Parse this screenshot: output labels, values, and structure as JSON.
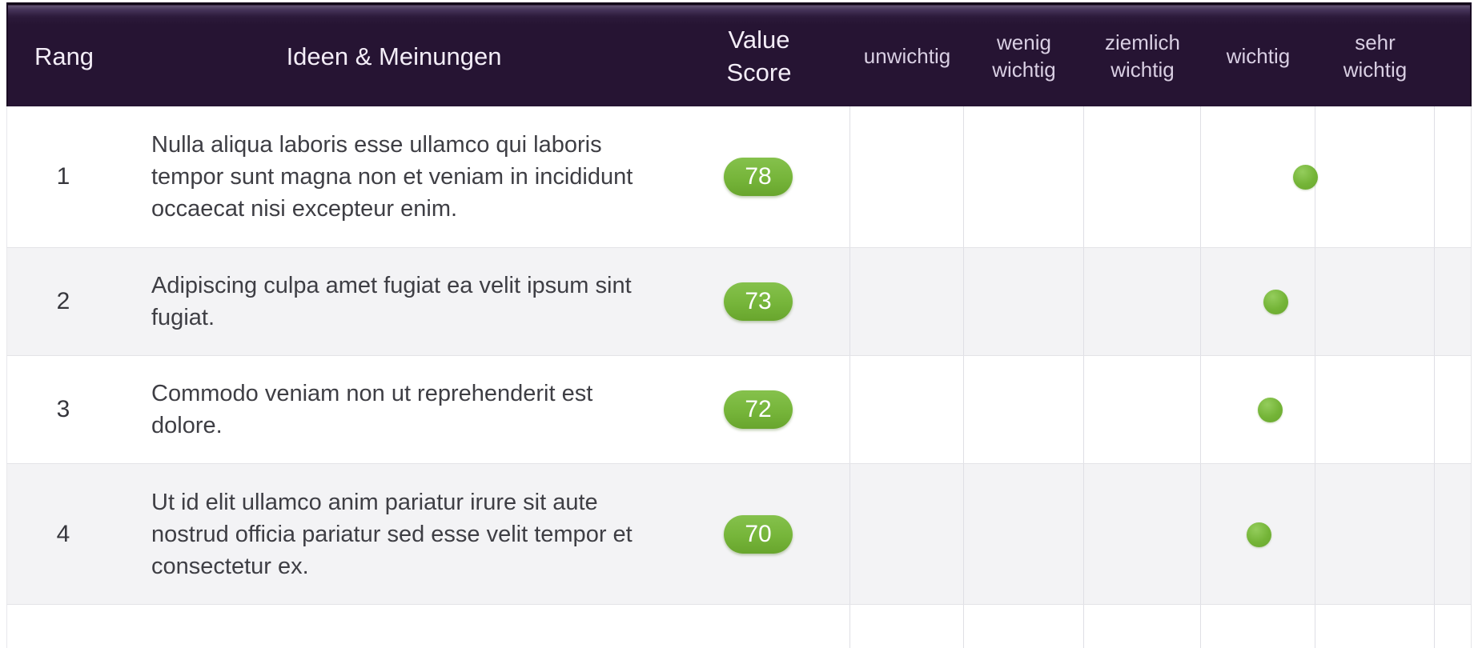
{
  "header": {
    "rank_label": "Rang",
    "idea_label": "Ideen & Meinungen",
    "score_label": "Value Score",
    "rating_labels": [
      "unwichtig",
      "wenig wichtig",
      "ziemlich wichtig",
      "wichtig",
      "sehr wichtig"
    ]
  },
  "rating_scale": {
    "min": 0,
    "max": 100
  },
  "rows": [
    {
      "rank": "1",
      "text": "Nulla aliqua laboris esse ullamco qui laboris tempor sunt magna non et veniam in incididunt occaecat nisi excepteur enim.",
      "score": 78,
      "rating": "wichtig"
    },
    {
      "rank": "2",
      "text": "Adipiscing culpa amet fugiat ea velit ipsum sint fugiat.",
      "score": 73,
      "rating": "wichtig"
    },
    {
      "rank": "3",
      "text": "Commodo veniam non ut reprehenderit est dolore.",
      "score": 72,
      "rating": "wichtig"
    },
    {
      "rank": "4",
      "text": "Ut id elit ullamco anim pariatur irure sit aute nostrud officia pariatur sed esse velit tempor et consectetur ex.",
      "score": 70,
      "rating": "wichtig"
    }
  ],
  "colors": {
    "header_bg": "#261433",
    "header_text": "#f3edf7",
    "header_rating_text": "#d9cfe3",
    "row_alt_bg": "#f3f3f5",
    "body_text": "#3e3e44",
    "gridline": "#dfdfe5",
    "score_green": "#76b53a",
    "dot_green": "#74b437"
  }
}
